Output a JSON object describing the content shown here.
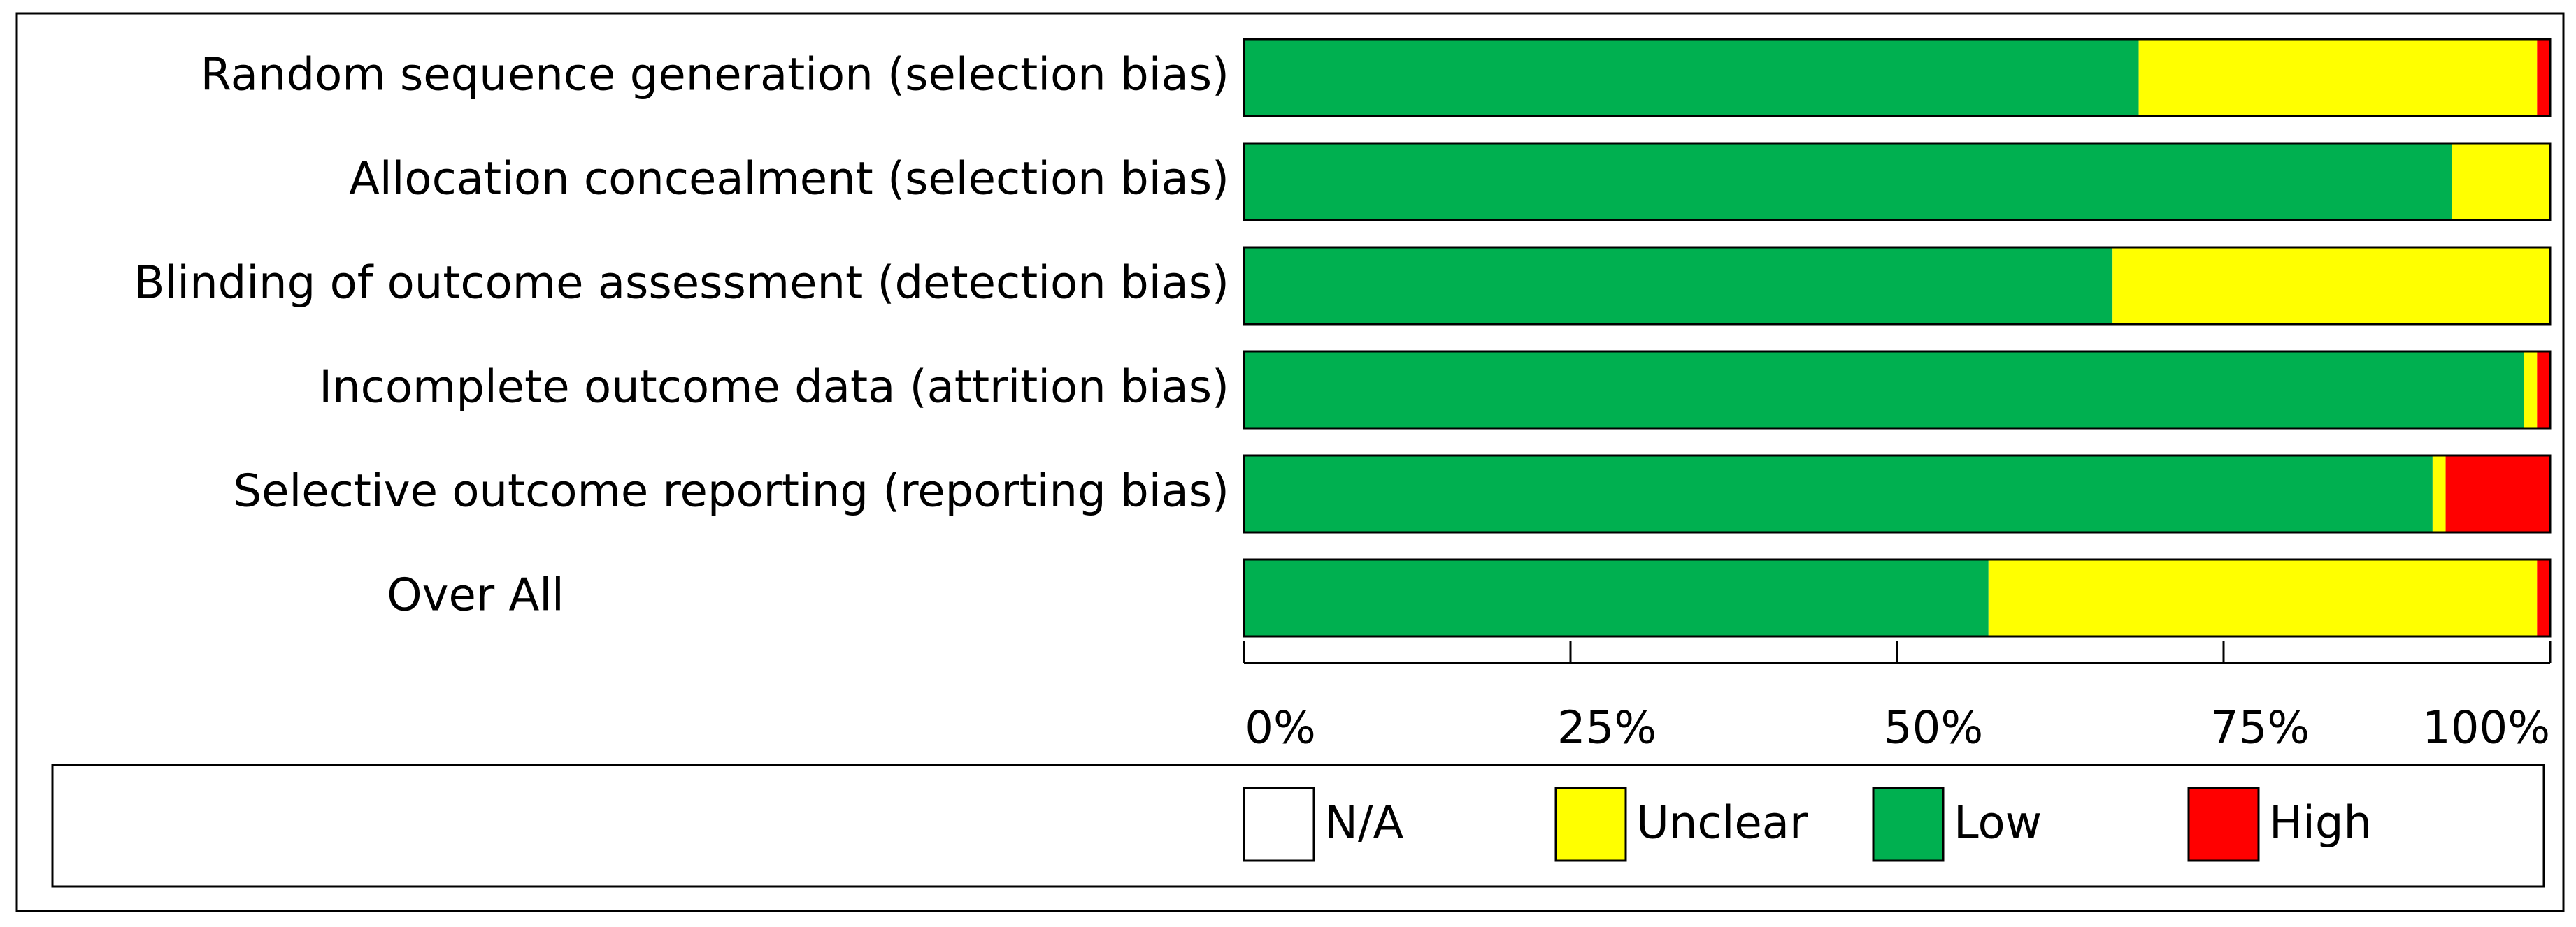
{
  "chart_data": {
    "type": "stacked-bar-horizontal",
    "categories": [
      "Random sequence generation (selection bias)",
      "Allocation concealment (selection bias)",
      "Blinding of outcome assessment (detection bias)",
      "Incomplete outcome data (attrition bias)",
      "Selective outcome reporting (reporting bias)",
      "Over All"
    ],
    "series": [
      {
        "name": "Low",
        "color": "#00b050",
        "values": [
          68.5,
          92.5,
          66.5,
          98,
          91,
          57
        ]
      },
      {
        "name": "Unclear",
        "color": "#ffff00",
        "values": [
          30.5,
          7.5,
          33.5,
          1,
          1,
          42
        ]
      },
      {
        "name": "High",
        "color": "#ff0000",
        "values": [
          1,
          0,
          0,
          1,
          8,
          1
        ]
      },
      {
        "name": "N/A",
        "color": "#ffffff",
        "values": [
          0,
          0,
          0,
          0,
          0,
          0
        ]
      }
    ],
    "xlim": [
      0,
      100
    ],
    "xticks": [
      {
        "value": 0,
        "label": "0%"
      },
      {
        "value": 25,
        "label": "25%"
      },
      {
        "value": 50,
        "label": "50%"
      },
      {
        "value": 75,
        "label": "75%"
      },
      {
        "value": 100,
        "label": "100%"
      }
    ]
  }
}
